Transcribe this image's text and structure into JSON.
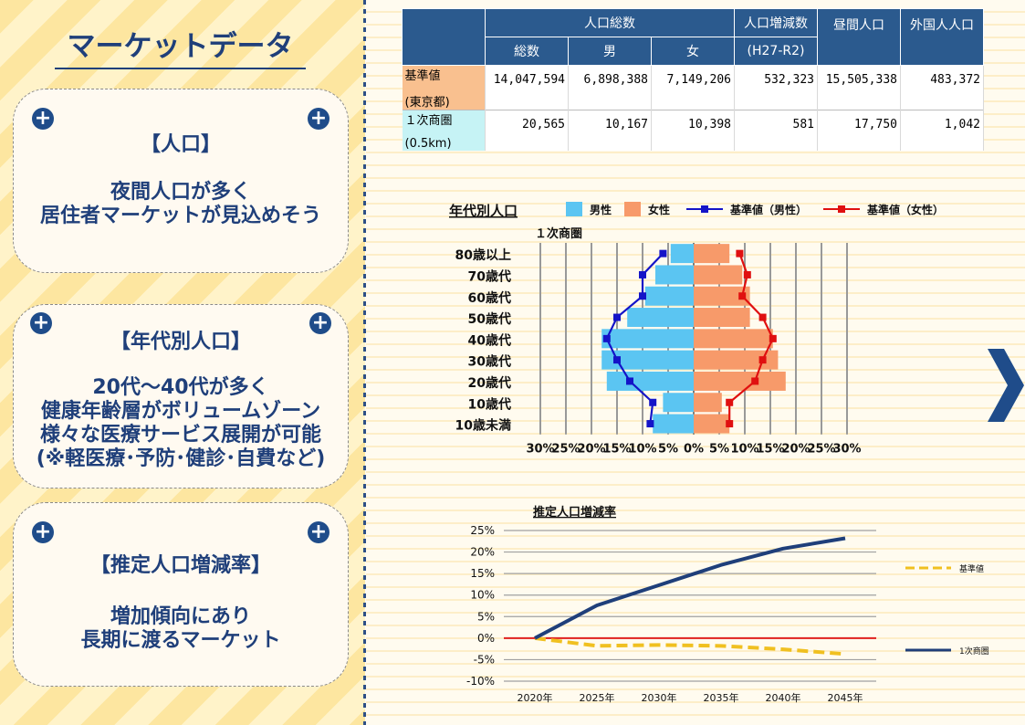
{
  "title": "マーケットデータ",
  "cards": [
    {
      "heading": "【人口】",
      "lines": [
        "夜間人口が多く",
        "居住者マーケットが見込めそう"
      ]
    },
    {
      "heading": "【年代別人口】",
      "lines": [
        "20代～40代が多く",
        "健康年齢層がボリュームゾーン",
        "様々な医療サービス展開が可能",
        "(※軽医療･予防･健診･自費など)"
      ]
    },
    {
      "heading": "【推定人口増減率】",
      "lines": [
        "増加傾向にあり",
        "長期に渡るマーケット"
      ]
    }
  ],
  "plus_icon": "+",
  "table": {
    "group_header": "人口総数",
    "col_total": "総数",
    "col_male": "男",
    "col_female": "女",
    "col_change": "人口増減数",
    "col_change_sub": "(H27-R2)",
    "col_day": "昼間人口",
    "col_foreign": "外国人人口",
    "rows": [
      {
        "label1": "基準値",
        "label2": "(東京都)",
        "total": "14,047,594",
        "male": "6,898,388",
        "female": "7,149,206",
        "change": "532,323",
        "day": "15,505,338",
        "foreign": "483,372"
      },
      {
        "label1": "１次商圏",
        "label2": "(0.5km)",
        "total": "20,565",
        "male": "10,167",
        "female": "10,398",
        "change": "581",
        "day": "17,750",
        "foreign": "1,042"
      }
    ]
  },
  "chart_data": [
    {
      "type": "bar",
      "orientation": "horizontal-pyramid",
      "title": "年代別人口",
      "subtitle": "１次商圏",
      "categories": [
        "80歳以上",
        "70歳代",
        "60歳代",
        "50歳代",
        "40歳代",
        "30歳代",
        "20歳代",
        "10歳代",
        "10歳未満"
      ],
      "series": [
        {
          "name": "男性",
          "type": "bar",
          "values": [
            4.5,
            7.5,
            9.5,
            13,
            18,
            18,
            17,
            6,
            8
          ],
          "color": "#5bc5f2"
        },
        {
          "name": "女性",
          "type": "bar",
          "values": [
            7,
            9.5,
            11,
            11,
            15.5,
            16.5,
            18,
            5.5,
            7
          ],
          "color": "#f79a6a"
        },
        {
          "name": "基準値（男性）",
          "type": "line",
          "values": [
            6,
            10,
            10,
            15,
            17,
            15,
            12.5,
            8,
            8.5
          ],
          "color": "#1414c8"
        },
        {
          "name": "基準値（女性）",
          "type": "line",
          "values": [
            9,
            10.5,
            9.5,
            13.5,
            15.5,
            13.5,
            12,
            7,
            7
          ],
          "color": "#e01010"
        }
      ],
      "x_ticks": [
        "30%",
        "25%",
        "20%",
        "15%",
        "10%",
        "5%",
        "0%",
        "5%",
        "10%",
        "15%",
        "20%",
        "25%",
        "30%"
      ],
      "xlim": [
        -30,
        30
      ],
      "legend": "top",
      "grid": true
    },
    {
      "type": "line",
      "title": "推定人口増減率",
      "x": [
        "2020年",
        "2025年",
        "2030年",
        "2035年",
        "2040年",
        "2045年"
      ],
      "series": [
        {
          "name": "基準値",
          "values": [
            0,
            -1.8,
            -1.6,
            -1.8,
            -2.6,
            -3.7
          ],
          "color": "#f0c020",
          "style": "dashed"
        },
        {
          "name": "1次商圏",
          "values": [
            0,
            7.6,
            12.3,
            17,
            20.8,
            23.2
          ],
          "color": "#1f3f7a",
          "style": "solid"
        }
      ],
      "y_ticks": [
        "25%",
        "20%",
        "15%",
        "10%",
        "5%",
        "0%",
        "-5%",
        "-10%"
      ],
      "ylim": [
        -10,
        25
      ],
      "legend": "right",
      "grid": true
    }
  ],
  "arrow_icon": "chevron-right-icon"
}
